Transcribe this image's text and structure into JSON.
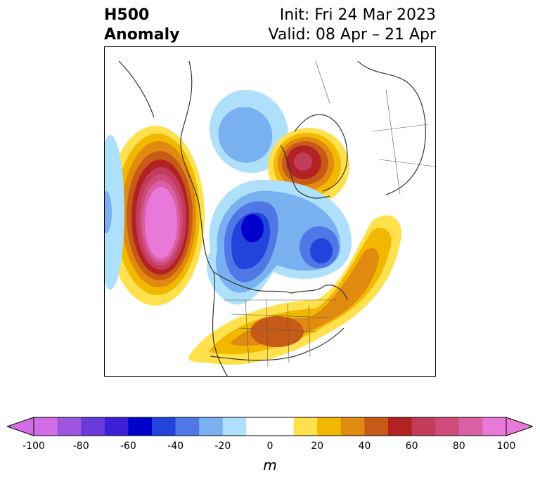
{
  "title": {
    "left_line1": "H500",
    "left_line2": "Anomaly",
    "right_line1": "Init: Fri 24 Mar 2023",
    "right_line2": "Valid: 08 Apr – 21 Apr"
  },
  "colorbar": {
    "units": "m",
    "ticks": [
      "-100",
      "-80",
      "-60",
      "-40",
      "-20",
      "0",
      "20",
      "40",
      "60",
      "80",
      "100"
    ],
    "colors": [
      "#d16ee6",
      "#9e55e0",
      "#6a3adb",
      "#3a1fd6",
      "#0000cc",
      "#2244dd",
      "#4f78e6",
      "#78b0f0",
      "#aee0fb",
      "#ffffff",
      "#ffffff",
      "#ffe14d",
      "#f2b800",
      "#e08a10",
      "#c85a18",
      "#b22222",
      "#c23c5c",
      "#cf4c7a",
      "#db5fa4",
      "#e879d8"
    ]
  },
  "map": {
    "projection": "north-polar-stereographic",
    "features": [
      {
        "name": "positive-anomaly-alaska-pacific",
        "sign": "positive"
      },
      {
        "name": "positive-anomaly-scandinavia",
        "sign": "positive"
      },
      {
        "name": "positive-anomaly-eastern-us-atlantic",
        "sign": "positive"
      },
      {
        "name": "negative-anomaly-canada-arctic",
        "sign": "negative"
      },
      {
        "name": "negative-anomaly-siberia",
        "sign": "negative"
      }
    ]
  }
}
